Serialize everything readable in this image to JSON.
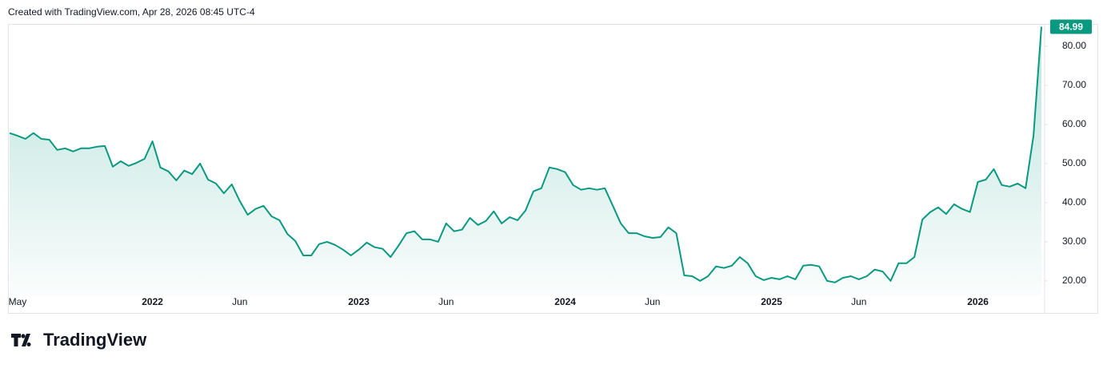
{
  "chart_data": {
    "type": "area",
    "title": "Created with TradingView.com, Apr 28, 2026 08:45 UTC-4",
    "brand": "TradingView",
    "color": "#089981",
    "categories": [
      null,
      "May",
      null,
      null,
      null,
      null,
      null,
      null,
      null,
      null,
      null,
      null,
      null,
      null,
      null,
      null,
      null,
      null,
      "2022",
      null,
      null,
      null,
      null,
      null,
      null,
      null,
      null,
      null,
      null,
      "Jun",
      null,
      null,
      null,
      null,
      null,
      null,
      null,
      null,
      null,
      null,
      null,
      null,
      null,
      null,
      "2023",
      null,
      null,
      null,
      null,
      null,
      null,
      null,
      null,
      null,
      null,
      "Jun",
      null,
      null,
      null,
      null,
      null,
      null,
      null,
      null,
      null,
      null,
      null,
      null,
      null,
      null,
      "2024",
      null,
      null,
      null,
      null,
      null,
      null,
      null,
      null,
      null,
      null,
      "Jun",
      null,
      null,
      null,
      null,
      null,
      null,
      null,
      null,
      null,
      null,
      null,
      null,
      null,
      null,
      "2025",
      null,
      null,
      null,
      null,
      null,
      null,
      null,
      null,
      null,
      null,
      "Jun",
      null,
      null,
      null,
      null,
      null,
      null,
      null,
      null,
      null,
      null,
      null,
      null,
      null,
      null,
      "2026",
      null,
      null,
      null,
      null,
      null,
      null,
      null,
      null
    ],
    "values": [
      57.8,
      57.1,
      56.3,
      57.8,
      56.3,
      56.1,
      53.5,
      53.9,
      53.1,
      53.9,
      53.9,
      54.3,
      54.5,
      49.2,
      50.6,
      49.4,
      50.2,
      51.2,
      55.7,
      49.0,
      48.0,
      45.7,
      48.2,
      47.3,
      50.0,
      45.9,
      44.9,
      42.4,
      44.7,
      40.4,
      36.9,
      38.4,
      39.2,
      36.5,
      35.5,
      32.0,
      30.2,
      26.5,
      26.5,
      29.4,
      30.0,
      29.2,
      28.0,
      26.5,
      28.0,
      29.8,
      28.6,
      28.2,
      26.1,
      29.0,
      32.2,
      32.7,
      30.6,
      30.6,
      30.0,
      34.7,
      32.7,
      33.1,
      36.1,
      34.3,
      35.3,
      37.8,
      34.7,
      36.3,
      35.5,
      38.0,
      42.9,
      43.7,
      49.0,
      48.6,
      47.8,
      44.5,
      43.3,
      43.7,
      43.3,
      43.7,
      39.2,
      34.7,
      32.2,
      32.2,
      31.4,
      31.0,
      31.2,
      33.7,
      32.2,
      21.4,
      21.2,
      20.0,
      21.2,
      23.7,
      23.3,
      23.9,
      26.1,
      24.5,
      21.2,
      20.2,
      20.8,
      20.4,
      21.2,
      20.4,
      23.9,
      24.1,
      23.7,
      20.0,
      19.6,
      20.8,
      21.2,
      20.4,
      21.2,
      22.9,
      22.4,
      20.0,
      24.5,
      24.5,
      26.1,
      35.7,
      37.6,
      38.8,
      37.1,
      39.6,
      38.4,
      37.6,
      45.3,
      45.9,
      48.6,
      44.5,
      44.1,
      44.9,
      43.7,
      57.1,
      84.99
    ],
    "ylim": [
      16.3,
      85.7
    ],
    "yticks": [
      {
        "value": 20,
        "label": "20.00"
      },
      {
        "value": 30,
        "label": "30.00"
      },
      {
        "value": 40,
        "label": "40.00"
      },
      {
        "value": 50,
        "label": "50.00"
      },
      {
        "value": 60,
        "label": "60.00"
      },
      {
        "value": 70,
        "label": "70.00"
      },
      {
        "value": 80,
        "label": "80.00"
      }
    ],
    "grid": false
  }
}
